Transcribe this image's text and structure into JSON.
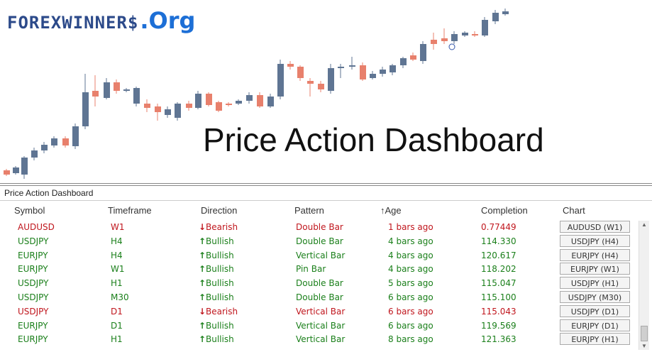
{
  "logo": {
    "text": "FOREXWINNER$",
    "suffix": ".Org"
  },
  "banner_title": "Price Action Dashboard",
  "panel": {
    "title": "Price Action Dashboard",
    "headers": {
      "symbol": "Symbol",
      "timeframe": "Timeframe",
      "direction": "Direction",
      "pattern": "Pattern",
      "age": "↑Age",
      "completion": "Completion",
      "chart": "Chart"
    },
    "rows": [
      {
        "symbol": "AUDUSD",
        "timeframe": "W1",
        "direction": "Bearish",
        "pattern": "Double Bar",
        "age": "1 bars ago",
        "completion": "0.77449",
        "chart": "AUDUSD (W1)"
      },
      {
        "symbol": "USDJPY",
        "timeframe": "H4",
        "direction": "Bullish",
        "pattern": "Double Bar",
        "age": "4 bars ago",
        "completion": "114.330",
        "chart": "USDJPY (H4)"
      },
      {
        "symbol": "EURJPY",
        "timeframe": "H4",
        "direction": "Bullish",
        "pattern": "Vertical Bar",
        "age": "4 bars ago",
        "completion": "120.617",
        "chart": "EURJPY (H4)"
      },
      {
        "symbol": "EURJPY",
        "timeframe": "W1",
        "direction": "Bullish",
        "pattern": "Pin Bar",
        "age": "4 bars ago",
        "completion": "118.202",
        "chart": "EURJPY (W1)"
      },
      {
        "symbol": "USDJPY",
        "timeframe": "H1",
        "direction": "Bullish",
        "pattern": "Double Bar",
        "age": "5 bars ago",
        "completion": "115.047",
        "chart": "USDJPY (H1)"
      },
      {
        "symbol": "USDJPY",
        "timeframe": "M30",
        "direction": "Bullish",
        "pattern": "Double Bar",
        "age": "6 bars ago",
        "completion": "115.100",
        "chart": "USDJPY (M30)"
      },
      {
        "symbol": "USDJPY",
        "timeframe": "D1",
        "direction": "Bearish",
        "pattern": "Vertical Bar",
        "age": "6 bars ago",
        "completion": "115.043",
        "chart": "USDJPY (D1)"
      },
      {
        "symbol": "EURJPY",
        "timeframe": "D1",
        "direction": "Bullish",
        "pattern": "Vertical Bar",
        "age": "6 bars ago",
        "completion": "119.569",
        "chart": "EURJPY (D1)"
      },
      {
        "symbol": "EURJPY",
        "timeframe": "H1",
        "direction": "Bullish",
        "pattern": "Vertical Bar",
        "age": "8 bars ago",
        "completion": "121.363",
        "chart": "EURJPY (H1)"
      }
    ]
  },
  "colors": {
    "bullish": "#1a7f1a",
    "bearish": "#c0161d",
    "candle_up": "#5f7593",
    "candle_down": "#e8806c"
  },
  "icons": {
    "bullish_arrow": "arrow-up-icon",
    "bearish_arrow": "arrow-down-icon",
    "scroll_up": "scroll-up-icon",
    "scroll_down": "scroll-down-icon"
  }
}
